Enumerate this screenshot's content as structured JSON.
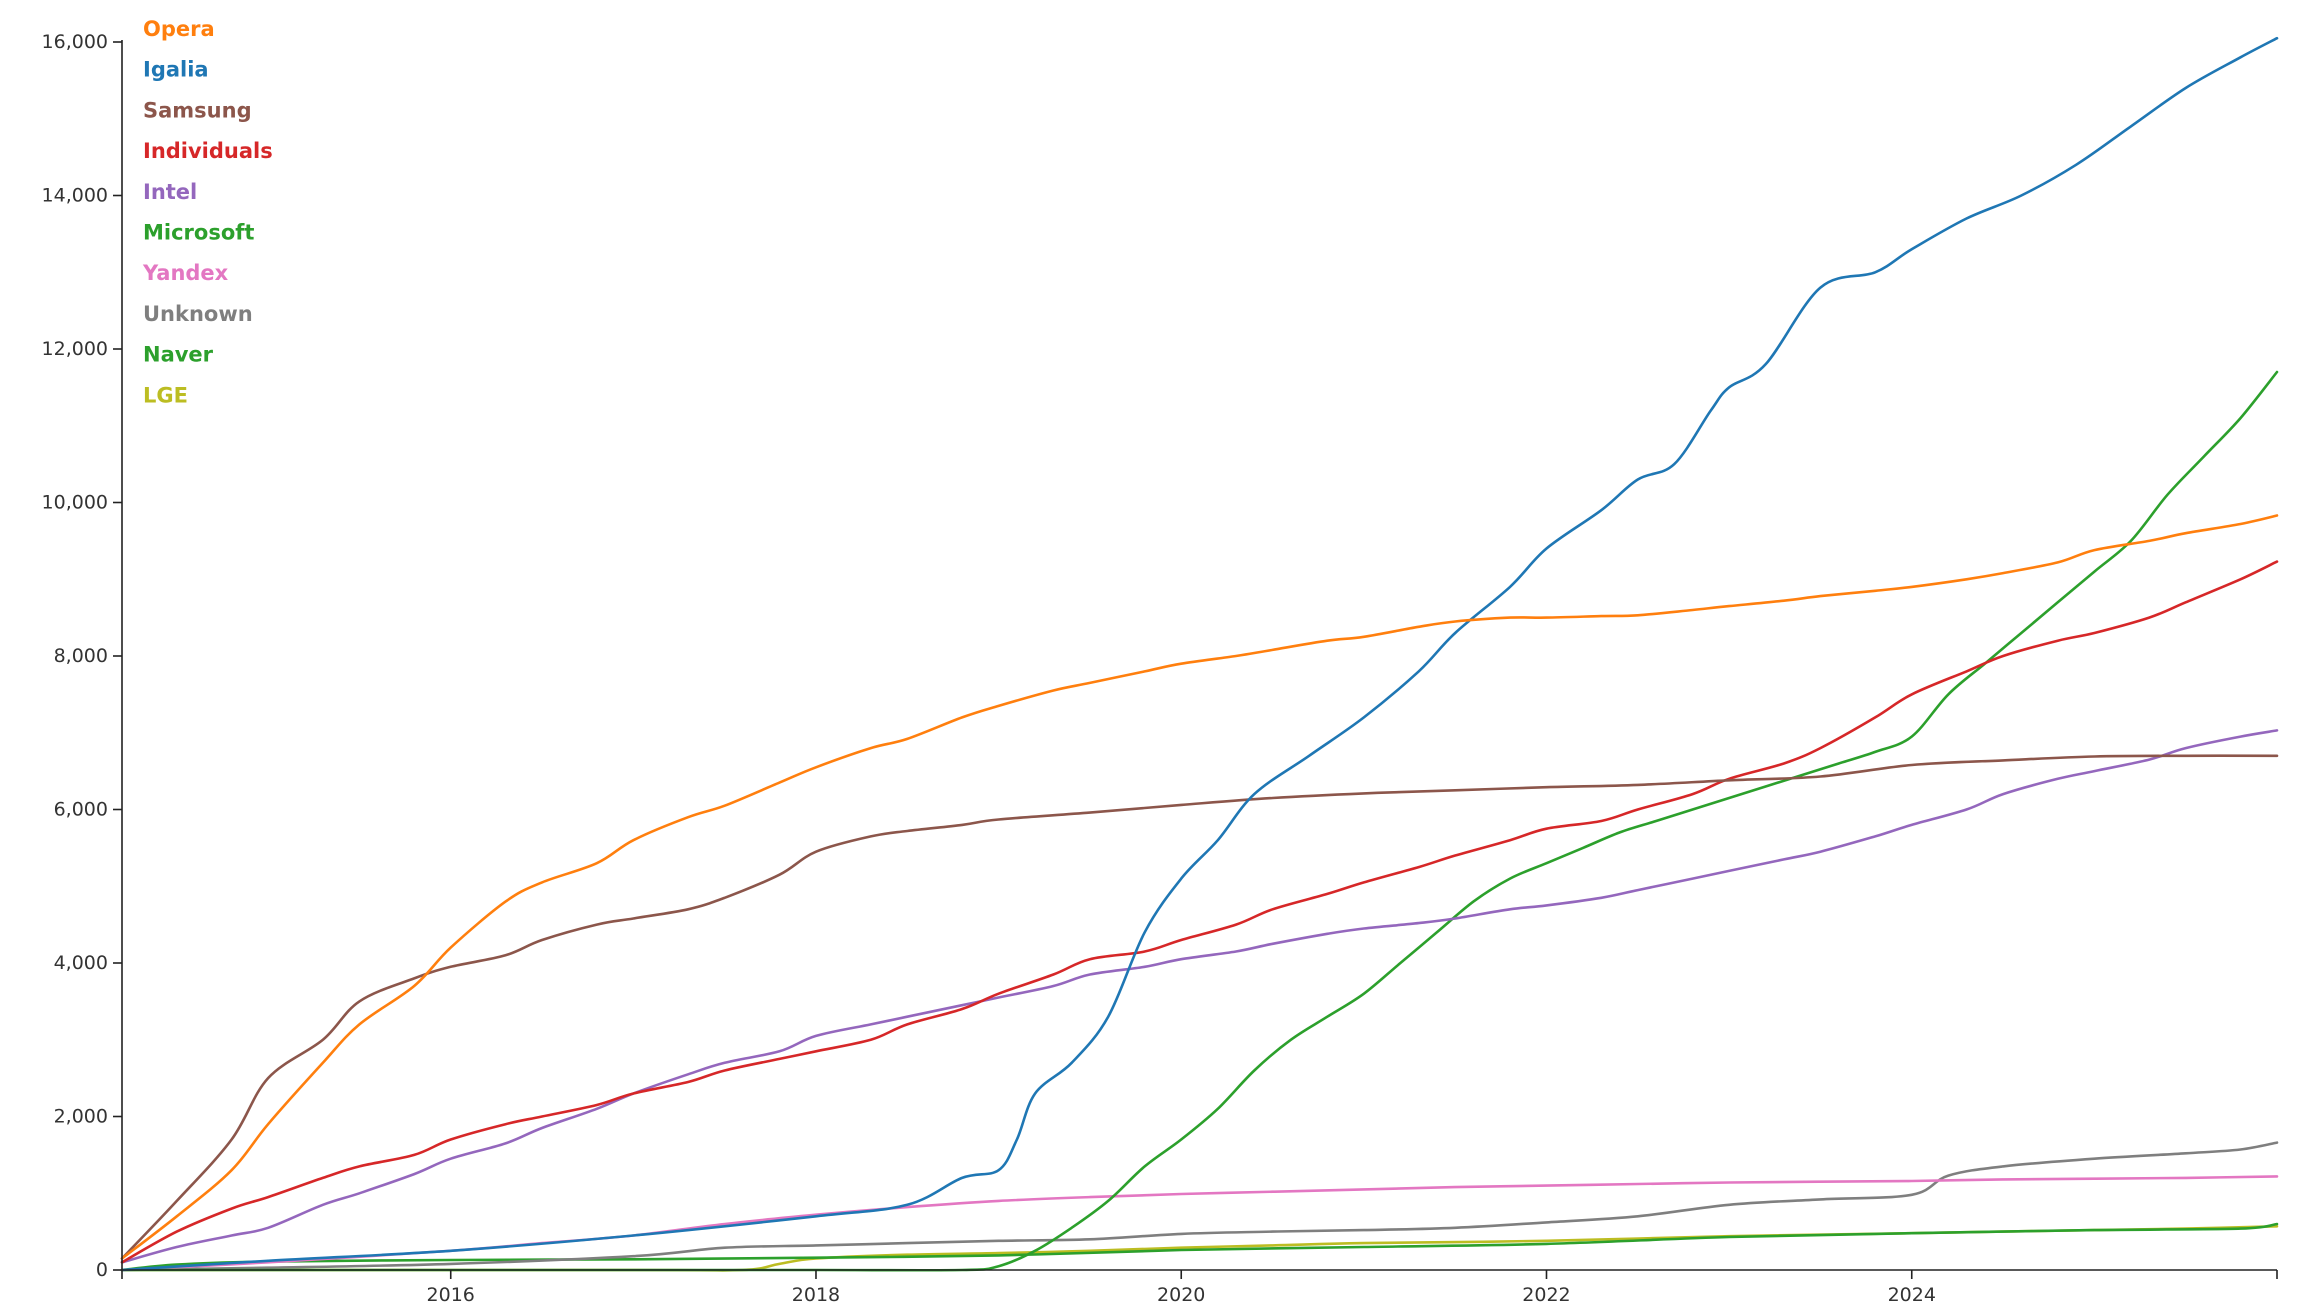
{
  "chart_data": {
    "type": "line",
    "title": "",
    "xlabel": "",
    "ylabel": "",
    "x_range": [
      2014.2,
      2026.0
    ],
    "ylim": [
      0,
      16000
    ],
    "grid": false,
    "legend_position": "top-left",
    "x_ticks": [
      {
        "value": 2016,
        "label": "2016"
      },
      {
        "value": 2018,
        "label": "2018"
      },
      {
        "value": 2020,
        "label": "2020"
      },
      {
        "value": 2022,
        "label": "2022"
      },
      {
        "value": 2024,
        "label": "2024"
      }
    ],
    "y_ticks": [
      {
        "value": 0,
        "label": "0"
      },
      {
        "value": 2000,
        "label": "2,000"
      },
      {
        "value": 4000,
        "label": "4,000"
      },
      {
        "value": 6000,
        "label": "6,000"
      },
      {
        "value": 8000,
        "label": "8,000"
      },
      {
        "value": 10000,
        "label": "10,000"
      },
      {
        "value": 12000,
        "label": "12,000"
      },
      {
        "value": 14000,
        "label": "14,000"
      },
      {
        "value": 16000,
        "label": "16,000"
      }
    ],
    "series": [
      {
        "name": "Opera",
        "color": "#ff7f0e",
        "x": [
          2014.2,
          2014.5,
          2014.8,
          2015.0,
          2015.3,
          2015.5,
          2015.8,
          2016.0,
          2016.3,
          2016.5,
          2016.8,
          2017.0,
          2017.3,
          2017.5,
          2017.8,
          2018.0,
          2018.3,
          2018.5,
          2018.8,
          2019.0,
          2019.3,
          2019.5,
          2019.8,
          2020.0,
          2020.3,
          2020.5,
          2020.8,
          2021.0,
          2021.3,
          2021.5,
          2021.8,
          2022.0,
          2022.3,
          2022.5,
          2022.8,
          2023.0,
          2023.3,
          2023.5,
          2023.8,
          2024.0,
          2024.3,
          2024.5,
          2024.8,
          2025.0,
          2025.3,
          2025.5,
          2025.8,
          2026.0
        ],
        "y": [
          150,
          700,
          1300,
          1900,
          2700,
          3200,
          3700,
          4200,
          4800,
          5050,
          5300,
          5600,
          5900,
          6050,
          6350,
          6550,
          6800,
          6920,
          7200,
          7350,
          7550,
          7650,
          7800,
          7900,
          8000,
          8080,
          8200,
          8250,
          8380,
          8450,
          8500,
          8500,
          8520,
          8530,
          8600,
          8650,
          8720,
          8780,
          8850,
          8900,
          9000,
          9080,
          9220,
          9380,
          9500,
          9600,
          9720,
          9830
        ]
      },
      {
        "name": "Igalia",
        "color": "#1f77b4",
        "x": [
          2014.2,
          2015.0,
          2016.0,
          2017.0,
          2018.0,
          2018.5,
          2018.8,
          2019.0,
          2019.1,
          2019.2,
          2019.4,
          2019.6,
          2019.8,
          2020.0,
          2020.2,
          2020.4,
          2020.7,
          2021.0,
          2021.3,
          2021.5,
          2021.8,
          2022.0,
          2022.3,
          2022.5,
          2022.7,
          2022.9,
          2023.0,
          2023.2,
          2023.5,
          2023.8,
          2024.0,
          2024.3,
          2024.6,
          2024.9,
          2025.2,
          2025.5,
          2025.8,
          2026.0
        ],
        "y": [
          0,
          120,
          250,
          450,
          700,
          850,
          1200,
          1300,
          1700,
          2300,
          2700,
          3300,
          4400,
          5100,
          5600,
          6200,
          6700,
          7200,
          7800,
          8300,
          8900,
          9400,
          9900,
          10300,
          10500,
          11200,
          11500,
          11800,
          12800,
          13000,
          13300,
          13700,
          14000,
          14400,
          14900,
          15400,
          15800,
          16050
        ]
      },
      {
        "name": "Samsung",
        "color": "#8c564b",
        "x": [
          2014.2,
          2014.5,
          2014.8,
          2015.0,
          2015.3,
          2015.5,
          2015.8,
          2016.0,
          2016.3,
          2016.5,
          2016.8,
          2017.0,
          2017.3,
          2017.5,
          2017.8,
          2018.0,
          2018.3,
          2018.5,
          2018.8,
          2019.0,
          2019.5,
          2020.0,
          2020.5,
          2021.0,
          2021.5,
          2022.0,
          2022.5,
          2023.0,
          2023.5,
          2024.0,
          2024.5,
          2025.0,
          2025.5,
          2026.0
        ],
        "y": [
          150,
          900,
          1700,
          2500,
          3000,
          3500,
          3800,
          3950,
          4100,
          4300,
          4500,
          4580,
          4700,
          4850,
          5150,
          5450,
          5650,
          5720,
          5800,
          5870,
          5960,
          6060,
          6150,
          6210,
          6250,
          6290,
          6320,
          6380,
          6430,
          6580,
          6640,
          6690,
          6700,
          6700
        ]
      },
      {
        "name": "Individuals",
        "color": "#d62728",
        "x": [
          2014.2,
          2014.5,
          2014.8,
          2015.0,
          2015.3,
          2015.5,
          2015.8,
          2016.0,
          2016.3,
          2016.5,
          2016.8,
          2017.0,
          2017.3,
          2017.5,
          2017.8,
          2018.0,
          2018.3,
          2018.5,
          2018.8,
          2019.0,
          2019.3,
          2019.5,
          2019.8,
          2020.0,
          2020.3,
          2020.5,
          2020.8,
          2021.0,
          2021.3,
          2021.5,
          2021.8,
          2022.0,
          2022.3,
          2022.5,
          2022.8,
          2023.0,
          2023.3,
          2023.5,
          2023.8,
          2024.0,
          2024.3,
          2024.5,
          2024.8,
          2025.0,
          2025.3,
          2025.5,
          2025.8,
          2026.0
        ],
        "y": [
          100,
          500,
          800,
          950,
          1200,
          1350,
          1500,
          1700,
          1900,
          2000,
          2150,
          2300,
          2450,
          2600,
          2750,
          2850,
          3000,
          3200,
          3400,
          3600,
          3850,
          4050,
          4150,
          4300,
          4500,
          4700,
          4900,
          5050,
          5250,
          5400,
          5600,
          5750,
          5850,
          6000,
          6200,
          6400,
          6600,
          6800,
          7200,
          7500,
          7800,
          8000,
          8200,
          8300,
          8500,
          8700,
          9000,
          9230
        ]
      },
      {
        "name": "Intel",
        "color": "#9467bd",
        "x": [
          2014.2,
          2014.5,
          2014.8,
          2015.0,
          2015.3,
          2015.5,
          2015.8,
          2016.0,
          2016.3,
          2016.5,
          2016.8,
          2017.0,
          2017.3,
          2017.5,
          2017.8,
          2018.0,
          2018.3,
          2018.5,
          2018.8,
          2019.0,
          2019.3,
          2019.5,
          2019.8,
          2020.0,
          2020.3,
          2020.5,
          2020.8,
          2021.0,
          2021.3,
          2021.5,
          2021.8,
          2022.0,
          2022.3,
          2022.5,
          2022.8,
          2023.0,
          2023.3,
          2023.5,
          2023.8,
          2024.0,
          2024.3,
          2024.5,
          2024.8,
          2025.0,
          2025.3,
          2025.5,
          2025.8,
          2026.0
        ],
        "y": [
          100,
          300,
          450,
          550,
          850,
          1000,
          1250,
          1450,
          1650,
          1850,
          2100,
          2300,
          2550,
          2700,
          2850,
          3050,
          3200,
          3300,
          3450,
          3550,
          3700,
          3850,
          3950,
          4050,
          4150,
          4250,
          4380,
          4450,
          4520,
          4580,
          4700,
          4750,
          4850,
          4950,
          5100,
          5200,
          5350,
          5450,
          5650,
          5800,
          6000,
          6200,
          6400,
          6500,
          6650,
          6800,
          6950,
          7030
        ]
      },
      {
        "name": "Microsoft",
        "color": "#2ca02c",
        "x": [
          2014.2,
          2015.0,
          2016.0,
          2017.0,
          2018.0,
          2018.8,
          2019.0,
          2019.2,
          2019.4,
          2019.6,
          2019.8,
          2020.0,
          2020.2,
          2020.4,
          2020.6,
          2020.8,
          2021.0,
          2021.2,
          2021.4,
          2021.6,
          2021.8,
          2022.0,
          2022.2,
          2022.4,
          2022.6,
          2022.8,
          2023.0,
          2023.2,
          2023.4,
          2023.6,
          2023.8,
          2024.0,
          2024.2,
          2024.4,
          2024.6,
          2024.8,
          2025.0,
          2025.2,
          2025.4,
          2025.6,
          2025.8,
          2026.0
        ],
        "y": [
          0,
          0,
          0,
          0,
          0,
          0,
          50,
          250,
          550,
          900,
          1350,
          1700,
          2100,
          2600,
          3000,
          3300,
          3600,
          4000,
          4400,
          4800,
          5100,
          5300,
          5500,
          5700,
          5850,
          6000,
          6150,
          6300,
          6450,
          6600,
          6750,
          6950,
          7500,
          7900,
          8300,
          8700,
          9100,
          9500,
          10100,
          10600,
          11100,
          11700
        ]
      },
      {
        "name": "Yandex",
        "color": "#e377c2",
        "x": [
          2014.2,
          2015.0,
          2016.0,
          2016.5,
          2017.0,
          2017.5,
          2018.0,
          2018.5,
          2019.0,
          2019.5,
          2020.0,
          2020.5,
          2021.0,
          2021.5,
          2022.0,
          2022.5,
          2023.0,
          2023.5,
          2024.0,
          2024.5,
          2025.0,
          2025.5,
          2026.0
        ],
        "y": [
          0,
          100,
          250,
          350,
          450,
          600,
          720,
          820,
          900,
          950,
          990,
          1020,
          1050,
          1080,
          1100,
          1120,
          1140,
          1150,
          1160,
          1180,
          1190,
          1200,
          1220
        ]
      },
      {
        "name": "Unknown",
        "color": "#7f7f7f",
        "x": [
          2014.2,
          2015.0,
          2016.0,
          2017.0,
          2017.5,
          2018.0,
          2018.5,
          2019.0,
          2019.5,
          2020.0,
          2020.5,
          2021.0,
          2021.5,
          2022.0,
          2022.5,
          2023.0,
          2023.5,
          2024.0,
          2024.2,
          2024.5,
          2025.0,
          2025.5,
          2025.8,
          2026.0
        ],
        "y": [
          0,
          30,
          80,
          180,
          290,
          320,
          350,
          380,
          400,
          470,
          500,
          520,
          550,
          620,
          700,
          850,
          920,
          980,
          1230,
          1350,
          1450,
          1520,
          1570,
          1660
        ]
      },
      {
        "name": "Naver",
        "color": "#2ca02c",
        "x": [
          2014.2,
          2014.5,
          2015.0,
          2016.0,
          2017.0,
          2018.0,
          2019.0,
          2020.0,
          2021.0,
          2022.0,
          2023.0,
          2024.0,
          2025.0,
          2025.8,
          2026.0
        ],
        "y": [
          0,
          70,
          110,
          130,
          140,
          160,
          190,
          260,
          300,
          340,
          430,
          480,
          520,
          540,
          600
        ]
      },
      {
        "name": "LGE",
        "color": "#bcbd22",
        "x": [
          2014.2,
          2017.0,
          2017.6,
          2017.8,
          2018.0,
          2018.5,
          2019.0,
          2019.5,
          2020.0,
          2020.5,
          2021.0,
          2022.0,
          2023.0,
          2024.0,
          2024.5,
          2025.0,
          2025.5,
          2026.0
        ],
        "y": [
          0,
          0,
          0,
          80,
          150,
          200,
          220,
          250,
          290,
          320,
          350,
          380,
          440,
          480,
          500,
          520,
          540,
          570
        ]
      }
    ]
  }
}
